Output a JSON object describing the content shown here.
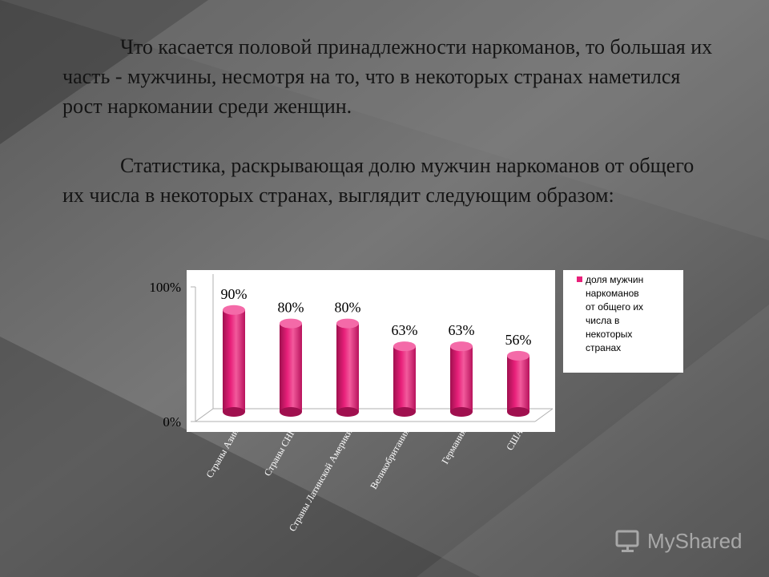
{
  "text": {
    "paragraph1": "Что касается половой принадлежности наркоманов, то большая их часть - мужчины, несмотря на то, что в некоторых странах наметился рост наркомании среди женщин.",
    "paragraph2": "Статистика, раскрывающая долю мужчин наркоманов от общего их числа в некоторых странах, выглядит следующим образом:"
  },
  "chart_data": {
    "type": "bar",
    "categories": [
      "Страны Азии",
      "Страны СНГ",
      "Страны Латинской Америки",
      "Великобритания",
      "Германия",
      "США"
    ],
    "series": [
      {
        "name": "доля мужчин наркоманов от общего их числа в некоторых странах",
        "values": [
          90,
          80,
          80,
          63,
          63,
          56
        ],
        "labels": [
          "90%",
          "80%",
          "80%",
          "63%",
          "63%",
          "56%"
        ]
      }
    ],
    "ylim": [
      0,
      100
    ],
    "yticks": [
      {
        "value": 0,
        "label": "0%"
      },
      {
        "value": 100,
        "label": "100%"
      }
    ],
    "legend_lines": [
      "доля мужчин",
      "наркоманов",
      "от общего их",
      "числа в",
      "некоторых",
      "странах"
    ],
    "legend_position": "right",
    "bar_color": "#e8207a"
  },
  "watermark": "MyShared"
}
